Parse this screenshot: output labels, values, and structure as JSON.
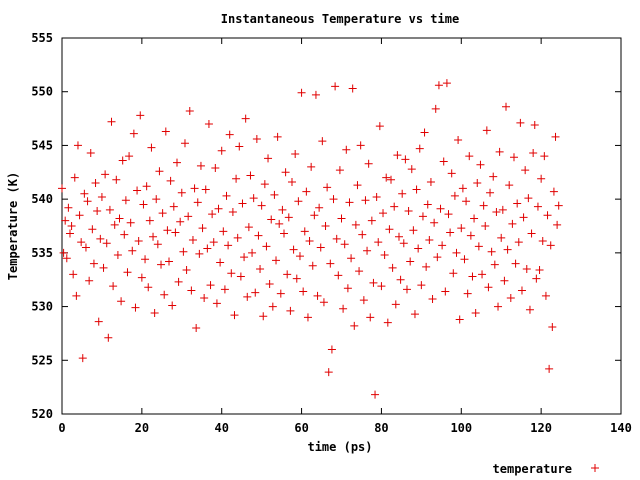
{
  "chart_data": {
    "type": "scatter",
    "title": "Instantaneous Temperature vs time",
    "xlabel": "time (ps)",
    "ylabel": "Temperature (K)",
    "xlim": [
      0,
      140
    ],
    "ylim": [
      520,
      555
    ],
    "xticks": [
      0,
      20,
      40,
      60,
      80,
      100,
      120,
      140
    ],
    "yticks": [
      520,
      525,
      530,
      535,
      540,
      545,
      550,
      555
    ],
    "grid": false,
    "legend_position": "bottom-right",
    "marker": "+",
    "color": "#e00000",
    "series": [
      {
        "name": "temperature",
        "points": [
          [
            0.0,
            541.0
          ],
          [
            0.4,
            535.0
          ],
          [
            0.8,
            538.0
          ],
          [
            1.2,
            534.5
          ],
          [
            1.6,
            539.2
          ],
          [
            2.0,
            536.8
          ],
          [
            2.4,
            537.5
          ],
          [
            2.8,
            533.0
          ],
          [
            3.2,
            542.0
          ],
          [
            3.6,
            531.0
          ],
          [
            4.0,
            545.0
          ],
          [
            4.4,
            538.5
          ],
          [
            4.8,
            536.0
          ],
          [
            5.2,
            525.2
          ],
          [
            5.6,
            540.5
          ],
          [
            6.0,
            535.5
          ],
          [
            6.4,
            539.8
          ],
          [
            6.8,
            532.4
          ],
          [
            7.2,
            544.3
          ],
          [
            7.6,
            537.2
          ],
          [
            8.0,
            534.0
          ],
          [
            8.4,
            541.5
          ],
          [
            8.8,
            538.9
          ],
          [
            9.2,
            528.6
          ],
          [
            9.6,
            536.3
          ],
          [
            10.0,
            540.2
          ],
          [
            10.4,
            533.6
          ],
          [
            10.8,
            542.3
          ],
          [
            11.2,
            535.9
          ],
          [
            11.6,
            527.1
          ],
          [
            12.0,
            539.0
          ],
          [
            12.4,
            547.2
          ],
          [
            12.8,
            531.9
          ],
          [
            13.2,
            537.6
          ],
          [
            13.6,
            541.8
          ],
          [
            14.0,
            534.8
          ],
          [
            14.4,
            538.2
          ],
          [
            14.8,
            530.5
          ],
          [
            15.2,
            543.6
          ],
          [
            15.6,
            536.7
          ],
          [
            16.0,
            539.9
          ],
          [
            16.4,
            533.2
          ],
          [
            16.8,
            544.0
          ],
          [
            17.2,
            537.8
          ],
          [
            17.6,
            535.2
          ],
          [
            18.0,
            546.1
          ],
          [
            18.4,
            529.9
          ],
          [
            18.8,
            540.8
          ],
          [
            19.2,
            536.1
          ],
          [
            19.6,
            547.8
          ],
          [
            20.0,
            532.7
          ],
          [
            20.4,
            539.5
          ],
          [
            20.8,
            534.4
          ],
          [
            21.2,
            541.2
          ],
          [
            21.6,
            531.8
          ],
          [
            22.0,
            538.0
          ],
          [
            22.4,
            544.8
          ],
          [
            22.8,
            536.5
          ],
          [
            23.2,
            529.4
          ],
          [
            23.6,
            540.0
          ],
          [
            24.0,
            535.8
          ],
          [
            24.4,
            542.6
          ],
          [
            24.8,
            533.9
          ],
          [
            25.2,
            538.7
          ],
          [
            25.6,
            531.1
          ],
          [
            26.0,
            546.3
          ],
          [
            26.4,
            537.1
          ],
          [
            26.8,
            534.2
          ],
          [
            27.2,
            541.7
          ],
          [
            27.6,
            530.1
          ],
          [
            28.0,
            539.3
          ],
          [
            28.4,
            536.9
          ],
          [
            28.8,
            543.4
          ],
          [
            29.2,
            532.3
          ],
          [
            29.6,
            537.9
          ],
          [
            30.0,
            540.6
          ],
          [
            30.4,
            535.1
          ],
          [
            30.8,
            545.2
          ],
          [
            31.2,
            533.4
          ],
          [
            31.6,
            538.4
          ],
          [
            32.0,
            548.2
          ],
          [
            32.4,
            531.5
          ],
          [
            32.8,
            536.2
          ],
          [
            33.2,
            541.0
          ],
          [
            33.6,
            528.0
          ],
          [
            34.0,
            539.7
          ],
          [
            34.4,
            534.9
          ],
          [
            34.8,
            543.1
          ],
          [
            35.2,
            537.3
          ],
          [
            35.6,
            530.8
          ],
          [
            36.0,
            540.9
          ],
          [
            36.4,
            535.4
          ],
          [
            36.8,
            547.0
          ],
          [
            37.2,
            532.0
          ],
          [
            37.6,
            538.6
          ],
          [
            38.0,
            536.0
          ],
          [
            38.4,
            542.9
          ],
          [
            38.8,
            530.3
          ],
          [
            39.2,
            539.1
          ],
          [
            39.6,
            534.1
          ],
          [
            40.0,
            544.5
          ],
          [
            40.4,
            537.0
          ],
          [
            40.8,
            531.6
          ],
          [
            41.2,
            540.3
          ],
          [
            41.6,
            535.7
          ],
          [
            42.0,
            546.0
          ],
          [
            42.4,
            533.1
          ],
          [
            42.8,
            538.8
          ],
          [
            43.2,
            529.2
          ],
          [
            43.6,
            541.9
          ],
          [
            44.0,
            536.4
          ],
          [
            44.4,
            544.9
          ],
          [
            44.8,
            532.8
          ],
          [
            45.2,
            539.6
          ],
          [
            45.6,
            534.6
          ],
          [
            46.0,
            547.5
          ],
          [
            46.4,
            530.9
          ],
          [
            46.8,
            537.4
          ],
          [
            47.2,
            542.2
          ],
          [
            47.6,
            535.0
          ],
          [
            48.0,
            540.1
          ],
          [
            48.4,
            531.3
          ],
          [
            48.8,
            545.6
          ],
          [
            49.2,
            536.6
          ],
          [
            49.6,
            533.5
          ],
          [
            50.0,
            539.4
          ],
          [
            50.4,
            529.1
          ],
          [
            50.8,
            541.4
          ],
          [
            51.2,
            535.6
          ],
          [
            51.6,
            543.8
          ],
          [
            52.0,
            532.1
          ],
          [
            52.4,
            538.1
          ],
          [
            52.8,
            530.0
          ],
          [
            53.2,
            540.4
          ],
          [
            53.6,
            534.3
          ],
          [
            54.0,
            545.8
          ],
          [
            54.4,
            537.7
          ],
          [
            54.8,
            531.2
          ],
          [
            55.2,
            539.0
          ],
          [
            55.6,
            536.8
          ],
          [
            56.0,
            542.5
          ],
          [
            56.4,
            533.0
          ],
          [
            56.8,
            538.3
          ],
          [
            57.2,
            529.6
          ],
          [
            57.6,
            541.6
          ],
          [
            58.0,
            535.3
          ],
          [
            58.4,
            544.2
          ],
          [
            58.8,
            532.6
          ],
          [
            59.2,
            539.8
          ],
          [
            59.6,
            534.7
          ],
          [
            60.0,
            549.9
          ],
          [
            60.4,
            531.4
          ],
          [
            60.8,
            537.0
          ],
          [
            61.2,
            540.7
          ],
          [
            61.6,
            529.0
          ],
          [
            62.0,
            536.1
          ],
          [
            62.4,
            543.0
          ],
          [
            62.8,
            533.8
          ],
          [
            63.2,
            538.5
          ],
          [
            63.6,
            549.7
          ],
          [
            64.0,
            531.0
          ],
          [
            64.4,
            539.2
          ],
          [
            64.8,
            535.5
          ],
          [
            65.2,
            545.4
          ],
          [
            65.6,
            530.4
          ],
          [
            66.0,
            537.5
          ],
          [
            66.4,
            541.1
          ],
          [
            66.8,
            523.9
          ],
          [
            67.2,
            534.0
          ],
          [
            67.6,
            526.0
          ],
          [
            68.0,
            540.0
          ],
          [
            68.4,
            550.5
          ],
          [
            68.8,
            536.3
          ],
          [
            69.2,
            532.9
          ],
          [
            69.6,
            542.7
          ],
          [
            70.0,
            538.2
          ],
          [
            70.4,
            529.8
          ],
          [
            70.8,
            535.8
          ],
          [
            71.2,
            544.6
          ],
          [
            71.6,
            531.7
          ],
          [
            72.0,
            539.7
          ],
          [
            72.4,
            534.5
          ],
          [
            72.8,
            550.3
          ],
          [
            73.2,
            528.2
          ],
          [
            73.6,
            537.6
          ],
          [
            74.0,
            541.3
          ],
          [
            74.4,
            533.3
          ],
          [
            74.8,
            545.0
          ],
          [
            75.2,
            536.7
          ],
          [
            75.6,
            530.6
          ],
          [
            76.0,
            539.9
          ],
          [
            76.4,
            535.2
          ],
          [
            76.8,
            543.3
          ],
          [
            77.2,
            529.0
          ],
          [
            77.6,
            538.0
          ],
          [
            78.0,
            532.2
          ],
          [
            78.4,
            521.8
          ],
          [
            78.8,
            540.2
          ],
          [
            79.2,
            536.0
          ],
          [
            79.6,
            546.8
          ],
          [
            80.0,
            531.9
          ],
          [
            80.4,
            538.7
          ],
          [
            80.8,
            534.8
          ],
          [
            81.2,
            542.0
          ],
          [
            81.6,
            528.5
          ],
          [
            82.0,
            537.2
          ],
          [
            82.4,
            541.8
          ],
          [
            82.8,
            533.6
          ],
          [
            83.2,
            539.3
          ],
          [
            83.6,
            530.2
          ],
          [
            84.0,
            544.1
          ],
          [
            84.4,
            536.5
          ],
          [
            84.8,
            532.5
          ],
          [
            85.2,
            540.5
          ],
          [
            85.6,
            535.9
          ],
          [
            86.0,
            543.7
          ],
          [
            86.4,
            531.6
          ],
          [
            86.8,
            538.9
          ],
          [
            87.2,
            534.2
          ],
          [
            87.6,
            542.8
          ],
          [
            88.0,
            537.1
          ],
          [
            88.4,
            529.3
          ],
          [
            88.8,
            540.9
          ],
          [
            89.2,
            535.4
          ],
          [
            89.6,
            544.7
          ],
          [
            90.0,
            532.0
          ],
          [
            90.4,
            538.4
          ],
          [
            90.8,
            546.2
          ],
          [
            91.2,
            533.7
          ],
          [
            91.6,
            539.5
          ],
          [
            92.0,
            536.2
          ],
          [
            92.4,
            541.6
          ],
          [
            92.8,
            530.7
          ],
          [
            93.2,
            537.8
          ],
          [
            93.6,
            548.4
          ],
          [
            94.0,
            534.6
          ],
          [
            94.4,
            550.6
          ],
          [
            94.8,
            539.1
          ],
          [
            95.2,
            535.7
          ],
          [
            95.6,
            543.5
          ],
          [
            96.0,
            531.4
          ],
          [
            96.4,
            550.8
          ],
          [
            96.8,
            538.6
          ],
          [
            97.2,
            536.9
          ],
          [
            97.6,
            542.4
          ],
          [
            98.0,
            533.1
          ],
          [
            98.4,
            540.3
          ],
          [
            98.8,
            535.0
          ],
          [
            99.2,
            545.5
          ],
          [
            99.6,
            528.8
          ],
          [
            100.0,
            537.3
          ],
          [
            100.4,
            541.0
          ],
          [
            100.8,
            534.4
          ],
          [
            101.2,
            539.8
          ],
          [
            101.6,
            531.2
          ],
          [
            102.0,
            544.0
          ],
          [
            102.4,
            536.6
          ],
          [
            102.8,
            532.8
          ],
          [
            103.2,
            538.2
          ],
          [
            103.6,
            529.4
          ],
          [
            104.0,
            541.5
          ],
          [
            104.4,
            535.6
          ],
          [
            104.8,
            543.2
          ],
          [
            105.2,
            533.0
          ],
          [
            105.6,
            539.4
          ],
          [
            106.0,
            537.5
          ],
          [
            106.4,
            546.4
          ],
          [
            106.8,
            531.8
          ],
          [
            107.2,
            540.6
          ],
          [
            107.6,
            535.1
          ],
          [
            108.0,
            542.1
          ],
          [
            108.4,
            533.9
          ],
          [
            108.8,
            538.8
          ],
          [
            109.2,
            530.0
          ],
          [
            109.6,
            544.4
          ],
          [
            110.0,
            536.4
          ],
          [
            110.4,
            539.0
          ],
          [
            110.8,
            532.4
          ],
          [
            111.2,
            548.6
          ],
          [
            111.6,
            535.3
          ],
          [
            112.0,
            541.3
          ],
          [
            112.4,
            530.8
          ],
          [
            112.8,
            537.7
          ],
          [
            113.2,
            543.9
          ],
          [
            113.6,
            534.0
          ],
          [
            114.0,
            539.6
          ],
          [
            114.4,
            536.0
          ],
          [
            114.8,
            547.1
          ],
          [
            115.2,
            531.5
          ],
          [
            115.6,
            538.3
          ],
          [
            116.0,
            542.7
          ],
          [
            116.4,
            533.5
          ],
          [
            116.8,
            540.1
          ],
          [
            117.2,
            529.7
          ],
          [
            117.6,
            536.8
          ],
          [
            118.0,
            544.3
          ],
          [
            118.4,
            546.9
          ],
          [
            118.8,
            532.6
          ],
          [
            119.2,
            539.3
          ],
          [
            119.6,
            533.4
          ],
          [
            120.0,
            541.9
          ],
          [
            120.4,
            536.1
          ],
          [
            120.8,
            544.0
          ],
          [
            121.2,
            531.0
          ],
          [
            121.6,
            538.5
          ],
          [
            122.0,
            524.2
          ],
          [
            122.4,
            535.7
          ],
          [
            122.8,
            528.1
          ],
          [
            123.2,
            540.7
          ],
          [
            123.6,
            545.8
          ],
          [
            124.0,
            537.6
          ],
          [
            124.4,
            539.4
          ]
        ]
      }
    ]
  }
}
